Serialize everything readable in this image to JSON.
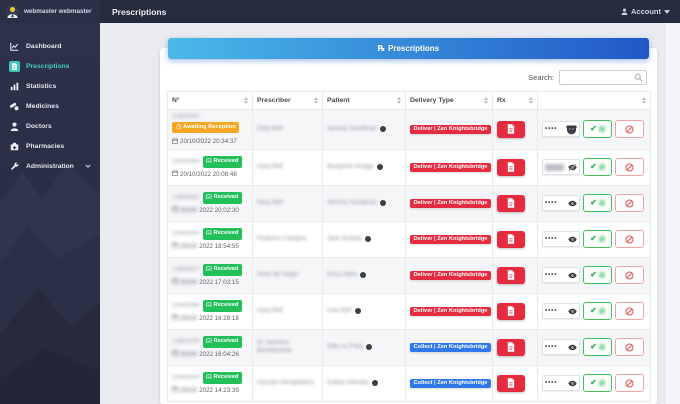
{
  "topbar": {
    "title": "Prescriptions",
    "username": "webmaster webmaster",
    "account_label": "Account"
  },
  "sidebar": {
    "items": [
      {
        "id": "dashboard",
        "label": "Dashboard",
        "icon": "chart-line-icon",
        "active": false,
        "has_submenu": false
      },
      {
        "id": "prescriptions",
        "label": "Prescriptions",
        "icon": "prescription-file-icon",
        "active": true,
        "has_submenu": false
      },
      {
        "id": "statistics",
        "label": "Statistics",
        "icon": "chart-bar-icon",
        "active": false,
        "has_submenu": false
      },
      {
        "id": "medicines",
        "label": "Medicines",
        "icon": "pills-icon",
        "active": false,
        "has_submenu": false
      },
      {
        "id": "doctors",
        "label": "Doctors",
        "icon": "doctor-icon",
        "active": false,
        "has_submenu": false
      },
      {
        "id": "pharmacies",
        "label": "Pharmacies",
        "icon": "pharmacy-icon",
        "active": false,
        "has_submenu": false
      },
      {
        "id": "administration",
        "label": "Administration",
        "icon": "tools-icon",
        "active": false,
        "has_submenu": true
      }
    ]
  },
  "card": {
    "rx_symbol": "℞",
    "title": "Prescriptions",
    "search_label": "Search:",
    "search_value": ""
  },
  "table": {
    "columns": [
      "N°",
      "Prescriber",
      "Patient",
      "Delivery Type",
      "Rx",
      ""
    ],
    "rows": [
      {
        "number": "21600497",
        "number_blurred": true,
        "status": "Awaiting Reception",
        "status_type": "awaiting",
        "date_blurred_part": "",
        "date_visible_part": "20/10/2022 20:34:37",
        "prescriber": "Gary Bell",
        "patient": "Jeremy Goodman",
        "delivery_label": "Deliver | Zen Knightsbridge",
        "delivery_type": "deliver",
        "rx_code_masked": "••••",
        "code_blurred": false,
        "code_icon": "monkey-icon"
      },
      {
        "number": "21600488",
        "number_blurred": true,
        "status": "Received",
        "status_type": "received",
        "date_blurred_part": "",
        "date_visible_part": "20/10/2022 20:08:48",
        "prescriber": "Gary Bell",
        "patient": "Benjamin Hodge",
        "delivery_label": "Deliver | Zen Knightsbridge",
        "delivery_type": "deliver",
        "rx_code_masked": "",
        "code_blurred": true,
        "code_icon": "eye-slash-icon"
      },
      {
        "number": "21600482",
        "number_blurred": true,
        "status": "Received",
        "status_type": "received",
        "date_blurred_part": "20/10/",
        "date_visible_part": "2022 20:02:30",
        "prescriber": "Gary Bell",
        "patient": "Jeremy Goodman",
        "delivery_label": "Deliver | Zen Knightsbridge",
        "delivery_type": "deliver",
        "rx_code_masked": "••••",
        "code_blurred": false,
        "code_icon": "eye-icon"
      },
      {
        "number": "21600455",
        "number_blurred": true,
        "status": "Received",
        "status_type": "received",
        "date_blurred_part": "20/10/",
        "date_visible_part": "2022 18:54:55",
        "prescriber": "Federico Campos",
        "patient": "Jack Durban",
        "delivery_label": "Deliver | Zen Knightsbridge",
        "delivery_type": "deliver",
        "rx_code_masked": "••••",
        "code_blurred": false,
        "code_icon": "eye-icon"
      },
      {
        "number": "21600417",
        "number_blurred": true,
        "status": "Received",
        "status_type": "received",
        "date_blurred_part": "20/10/",
        "date_visible_part": "2022 17:03:15",
        "prescriber": "Irene de Vargn",
        "patient": "Erica Stein",
        "delivery_label": "Deliver | Zen Knightsbridge",
        "delivery_type": "deliver",
        "rx_code_masked": "••••",
        "code_blurred": false,
        "code_icon": "eye-icon"
      },
      {
        "number": "21600398",
        "number_blurred": true,
        "status": "Received",
        "status_type": "received",
        "date_blurred_part": "20/10/",
        "date_visible_part": "2022 16:28:18",
        "prescriber": "Gary Bell",
        "patient": "Lisa DeF",
        "delivery_label": "Deliver | Zen Knightsbridge",
        "delivery_type": "deliver",
        "rx_code_masked": "••••",
        "code_blurred": false,
        "code_icon": "eye-icon"
      },
      {
        "number": "21600376",
        "number_blurred": true,
        "status": "Received",
        "status_type": "received",
        "date_blurred_part": "20/10/",
        "date_visible_part": "2022 16:04:26",
        "prescriber": "Dr Vassimo Bendakselat",
        "patient": "Dilla nu Para",
        "delivery_label": "Collect | Zen Knightsbridge",
        "delivery_type": "collect",
        "rx_code_masked": "••••",
        "code_blurred": false,
        "code_icon": "eye-icon"
      },
      {
        "number": "21600344",
        "number_blurred": true,
        "status": "Received",
        "status_type": "received",
        "date_blurred_part": "20/10/",
        "date_visible_part": "2022 14:23:39",
        "prescriber": "Hassan Almujaddich",
        "patient": "Sultan Hamdar",
        "delivery_label": "Collect | Zen Knightsbridge",
        "delivery_type": "collect",
        "rx_code_masked": "••••",
        "code_blurred": false,
        "code_icon": "eye-icon"
      }
    ]
  },
  "colors": {
    "accent_teal": "#43cdbb",
    "gradient_start": "#4ab9e9",
    "gradient_end": "#2158c6",
    "deliver_red": "#e52b3f",
    "collect_blue": "#2f78ea",
    "received_green": "#23c05a",
    "awaiting_orange": "#f5a623",
    "topbar_bg": "#262b3e",
    "sidebar_bg": "#2d3249"
  }
}
